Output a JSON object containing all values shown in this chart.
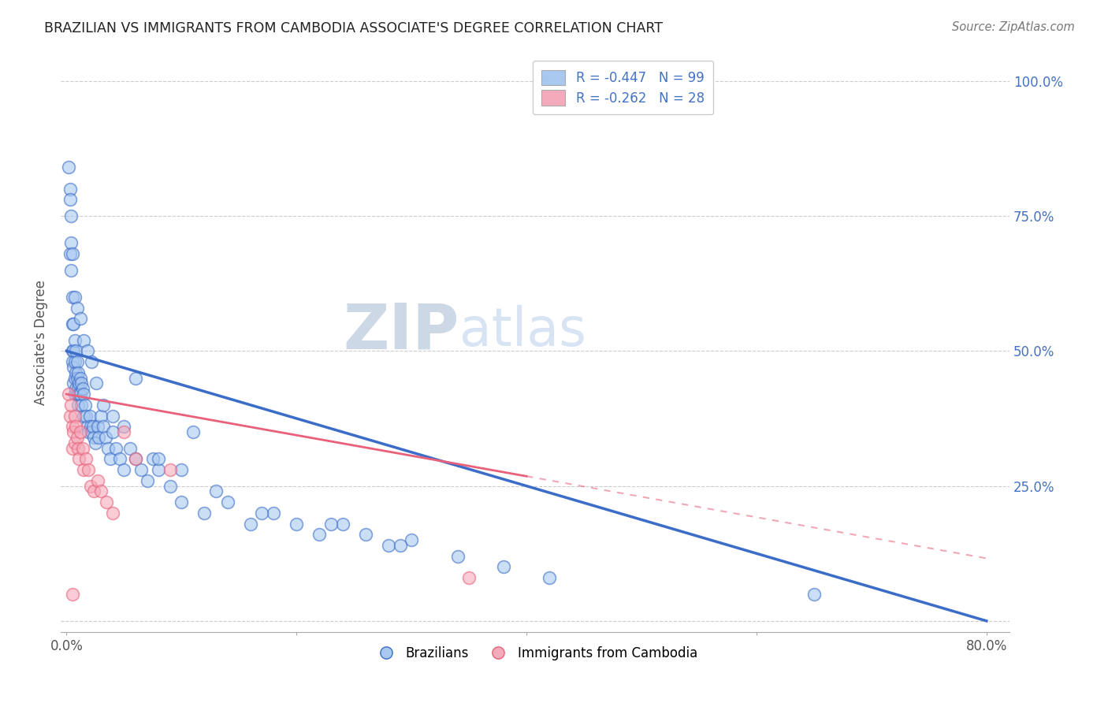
{
  "title": "BRAZILIAN VS IMMIGRANTS FROM CAMBODIA ASSOCIATE'S DEGREE CORRELATION CHART",
  "source": "Source: ZipAtlas.com",
  "ylabel": "Associate's Degree",
  "xlim": [
    -0.005,
    0.82
  ],
  "ylim": [
    -0.02,
    1.05
  ],
  "xticks": [
    0.0,
    0.2,
    0.4,
    0.6,
    0.8
  ],
  "xticklabels": [
    "0.0%",
    "",
    "",
    "",
    "80.0%"
  ],
  "yticks": [
    0.0,
    0.25,
    0.5,
    0.75,
    1.0
  ],
  "yticklabels_right": [
    "",
    "25.0%",
    "50.0%",
    "75.0%",
    "100.0%"
  ],
  "legend_label1": "R = -0.447   N = 99",
  "legend_label2": "R = -0.262   N = 28",
  "blue_color": "#A8C8F0",
  "pink_color": "#F5AABB",
  "blue_line_color": "#3B6CC8",
  "pink_line_color": "#E8607A",
  "b_intercept": 0.5,
  "b_slope": -0.625,
  "c_intercept": 0.42,
  "c_slope": -0.38,
  "brazilians_x": [
    0.002,
    0.003,
    0.003,
    0.004,
    0.004,
    0.004,
    0.005,
    0.005,
    0.005,
    0.005,
    0.006,
    0.006,
    0.006,
    0.006,
    0.007,
    0.007,
    0.007,
    0.007,
    0.008,
    0.008,
    0.008,
    0.009,
    0.009,
    0.009,
    0.01,
    0.01,
    0.01,
    0.011,
    0.011,
    0.012,
    0.012,
    0.013,
    0.013,
    0.014,
    0.015,
    0.015,
    0.016,
    0.017,
    0.018,
    0.019,
    0.02,
    0.021,
    0.022,
    0.023,
    0.024,
    0.025,
    0.027,
    0.028,
    0.03,
    0.032,
    0.034,
    0.036,
    0.038,
    0.04,
    0.043,
    0.046,
    0.05,
    0.055,
    0.06,
    0.065,
    0.07,
    0.075,
    0.08,
    0.09,
    0.1,
    0.11,
    0.12,
    0.14,
    0.16,
    0.18,
    0.2,
    0.22,
    0.24,
    0.26,
    0.28,
    0.3,
    0.34,
    0.38,
    0.42,
    0.65,
    0.003,
    0.005,
    0.007,
    0.009,
    0.012,
    0.015,
    0.018,
    0.022,
    0.026,
    0.032,
    0.04,
    0.05,
    0.06,
    0.08,
    0.1,
    0.13,
    0.17,
    0.23,
    0.29
  ],
  "brazilians_y": [
    0.84,
    0.8,
    0.68,
    0.75,
    0.7,
    0.65,
    0.6,
    0.55,
    0.5,
    0.48,
    0.55,
    0.5,
    0.47,
    0.44,
    0.52,
    0.48,
    0.45,
    0.42,
    0.5,
    0.46,
    0.43,
    0.48,
    0.45,
    0.42,
    0.46,
    0.43,
    0.4,
    0.44,
    0.42,
    0.45,
    0.42,
    0.44,
    0.4,
    0.43,
    0.42,
    0.38,
    0.4,
    0.38,
    0.36,
    0.35,
    0.38,
    0.36,
    0.35,
    0.36,
    0.34,
    0.33,
    0.36,
    0.34,
    0.38,
    0.36,
    0.34,
    0.32,
    0.3,
    0.35,
    0.32,
    0.3,
    0.28,
    0.32,
    0.3,
    0.28,
    0.26,
    0.3,
    0.28,
    0.25,
    0.22,
    0.35,
    0.2,
    0.22,
    0.18,
    0.2,
    0.18,
    0.16,
    0.18,
    0.16,
    0.14,
    0.15,
    0.12,
    0.1,
    0.08,
    0.05,
    0.78,
    0.68,
    0.6,
    0.58,
    0.56,
    0.52,
    0.5,
    0.48,
    0.44,
    0.4,
    0.38,
    0.36,
    0.45,
    0.3,
    0.28,
    0.24,
    0.2,
    0.18,
    0.14
  ],
  "cambodia_x": [
    0.002,
    0.003,
    0.004,
    0.005,
    0.005,
    0.006,
    0.007,
    0.007,
    0.008,
    0.009,
    0.01,
    0.011,
    0.012,
    0.014,
    0.015,
    0.017,
    0.019,
    0.021,
    0.024,
    0.027,
    0.03,
    0.035,
    0.04,
    0.05,
    0.06,
    0.09,
    0.35,
    0.005
  ],
  "cambodia_y": [
    0.42,
    0.38,
    0.4,
    0.36,
    0.32,
    0.35,
    0.38,
    0.33,
    0.36,
    0.34,
    0.32,
    0.3,
    0.35,
    0.32,
    0.28,
    0.3,
    0.28,
    0.25,
    0.24,
    0.26,
    0.24,
    0.22,
    0.2,
    0.35,
    0.3,
    0.28,
    0.08,
    0.05
  ]
}
